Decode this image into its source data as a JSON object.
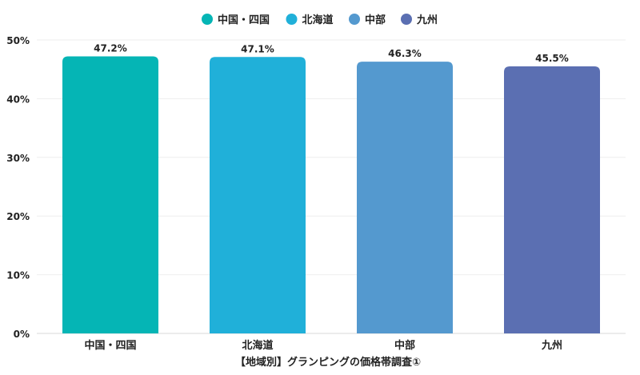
{
  "chart_data": {
    "type": "bar",
    "categories": [
      "中国・四国",
      "北海道",
      "中部",
      "九州"
    ],
    "values": [
      47.2,
      47.1,
      46.3,
      45.5
    ],
    "value_labels": [
      "47.2%",
      "47.1%",
      "46.3%",
      "45.5%"
    ],
    "colors": [
      "#05b5b5",
      "#20b0d9",
      "#5499cf",
      "#5b6fb2"
    ],
    "legend": {
      "position": "top-center",
      "entries": [
        {
          "label": "中国・四国",
          "color": "#05b5b5"
        },
        {
          "label": "北海道",
          "color": "#20b0d9"
        },
        {
          "label": "中部",
          "color": "#5499cf"
        },
        {
          "label": "九州",
          "color": "#5b6fb2"
        }
      ]
    },
    "xlabel": "【地域別】グランピングの価格帯調査①",
    "ylabel": "",
    "ylim": [
      0,
      50
    ],
    "yticks": [
      0,
      10,
      20,
      30,
      40,
      50
    ],
    "ytick_labels": [
      "0%",
      "10%",
      "20%",
      "30%",
      "40%",
      "50%"
    ],
    "grid": true
  }
}
